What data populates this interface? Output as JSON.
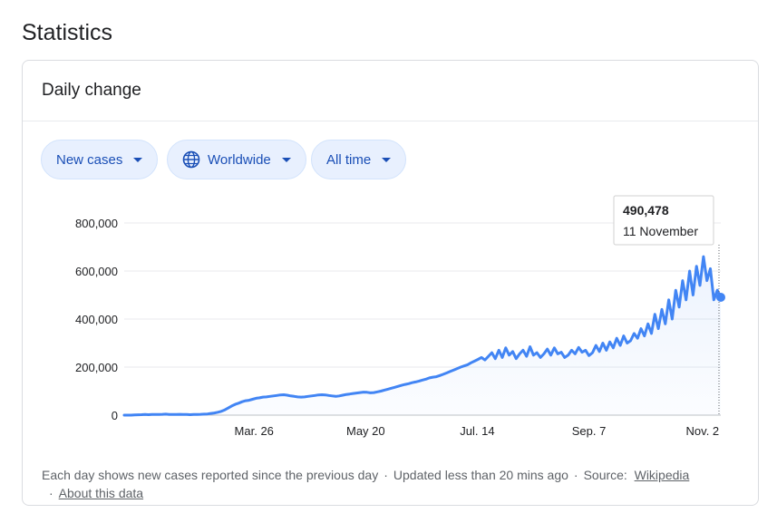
{
  "page": {
    "title": "Statistics"
  },
  "card": {
    "title": "Daily change"
  },
  "filters": {
    "metric": "New cases",
    "region": "Worldwide",
    "range": "All time"
  },
  "tooltip": {
    "value": "490,478",
    "date": "11 November"
  },
  "footer": {
    "note": "Each day shows new cases reported since the previous day",
    "updated": "Updated less than 20 mins ago",
    "source_label": "Source:",
    "source_link": "Wikipedia",
    "about_link": "About this data",
    "dot": "·"
  },
  "colors": {
    "line": "#4285f4",
    "chip_bg": "#e8f0fe",
    "chip_text": "#1a4fb6",
    "grid": "#e8eaed"
  },
  "chart_data": {
    "type": "line",
    "title": "Daily change",
    "xlabel": "",
    "ylabel": "",
    "x_ticks": [
      "Mar. 26",
      "May 20",
      "Jul. 14",
      "Sep. 7",
      "Nov. 2"
    ],
    "y_ticks": [
      "0",
      "200,000",
      "400,000",
      "600,000",
      "800,000"
    ],
    "ylim": [
      0,
      800000
    ],
    "x_range": [
      "2020-01-22",
      "2020-11-11"
    ],
    "grid": true,
    "series": [
      {
        "values": [
          0,
          0,
          0,
          1000,
          1500,
          2000,
          2500,
          2000,
          3000,
          2500,
          3000,
          3500,
          4000,
          3000,
          2500,
          3000,
          3500,
          3000,
          2500,
          2000,
          2500,
          3000,
          3500,
          4000,
          5000,
          7000,
          9000,
          12000,
          16000,
          22000,
          30000,
          38000,
          45000,
          50000,
          56000,
          60000,
          62000,
          66000,
          70000,
          72000,
          75000,
          76000,
          78000,
          80000,
          82000,
          84000,
          85000,
          83000,
          80000,
          78000,
          76000,
          75000,
          76000,
          78000,
          80000,
          82000,
          84000,
          85000,
          84000,
          82000,
          80000,
          78000,
          80000,
          83000,
          86000,
          88000,
          90000,
          92000,
          94000,
          96000,
          95000,
          93000,
          94000,
          97000,
          100000,
          104000,
          108000,
          112000,
          116000,
          120000,
          124000,
          128000,
          131000,
          135000,
          138000,
          142000,
          146000,
          150000,
          155000,
          158000,
          160000,
          165000,
          170000,
          176000,
          182000,
          188000,
          194000,
          200000,
          205000,
          210000,
          218000,
          225000,
          232000,
          240000,
          230000,
          245000,
          260000,
          235000,
          270000,
          240000,
          280000,
          250000,
          265000,
          235000,
          255000,
          270000,
          245000,
          285000,
          250000,
          260000,
          240000,
          255000,
          275000,
          250000,
          280000,
          255000,
          262000,
          240000,
          250000,
          270000,
          255000,
          282000,
          262000,
          270000,
          248000,
          260000,
          290000,
          265000,
          300000,
          270000,
          305000,
          280000,
          320000,
          290000,
          330000,
          300000,
          310000,
          340000,
          320000,
          360000,
          330000,
          380000,
          340000,
          420000,
          360000,
          440000,
          380000,
          480000,
          400000,
          520000,
          450000,
          560000,
          480000,
          600000,
          500000,
          620000,
          540000,
          660000,
          560000,
          610000,
          480000,
          520000,
          490478
        ],
        "points": [
          [
            "2020-01-22",
            0
          ],
          [
            "2020-02-13",
            4000
          ],
          [
            "2020-03-10",
            5000
          ],
          [
            "2020-03-20",
            22000
          ],
          [
            "2020-03-26",
            40000
          ],
          [
            "2020-04-05",
            75000
          ],
          [
            "2020-04-15",
            84000
          ],
          [
            "2020-04-25",
            78000
          ],
          [
            "2020-05-05",
            85000
          ],
          [
            "2020-05-20",
            95000
          ],
          [
            "2020-06-01",
            115000
          ],
          [
            "2020-06-15",
            145000
          ],
          [
            "2020-07-01",
            185000
          ],
          [
            "2020-07-14",
            220000
          ],
          [
            "2020-07-20",
            270000
          ],
          [
            "2020-08-01",
            250000
          ],
          [
            "2020-08-15",
            260000
          ],
          [
            "2020-09-01",
            255000
          ],
          [
            "2020-09-07",
            270000
          ],
          [
            "2020-09-20",
            290000
          ],
          [
            "2020-10-01",
            300000
          ],
          [
            "2020-10-10",
            330000
          ],
          [
            "2020-10-20",
            380000
          ],
          [
            "2020-10-28",
            450000
          ],
          [
            "2020-11-02",
            520000
          ],
          [
            "2020-11-06",
            600000
          ],
          [
            "2020-11-08",
            655000
          ],
          [
            "2020-11-11",
            490478
          ]
        ]
      }
    ]
  }
}
